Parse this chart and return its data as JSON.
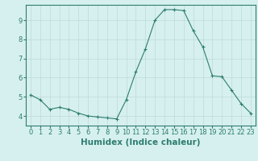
{
  "x": [
    0,
    1,
    2,
    3,
    4,
    5,
    6,
    7,
    8,
    9,
    10,
    11,
    12,
    13,
    14,
    15,
    16,
    17,
    18,
    19,
    20,
    21,
    22,
    23
  ],
  "y": [
    5.1,
    4.85,
    4.35,
    4.45,
    4.35,
    4.15,
    4.0,
    3.95,
    3.9,
    3.85,
    4.85,
    6.3,
    7.5,
    9.0,
    9.55,
    9.55,
    9.5,
    8.45,
    7.6,
    6.1,
    6.05,
    5.35,
    4.65,
    4.15
  ],
  "line_color": "#2e7d6e",
  "marker": "+",
  "marker_size": 3,
  "xlabel": "Humidex (Indice chaleur)",
  "ylabel": "",
  "title": "",
  "xlim": [
    -0.5,
    23.5
  ],
  "ylim": [
    3.5,
    9.8
  ],
  "yticks": [
    4,
    5,
    6,
    7,
    8,
    9
  ],
  "xticks": [
    0,
    1,
    2,
    3,
    4,
    5,
    6,
    7,
    8,
    9,
    10,
    11,
    12,
    13,
    14,
    15,
    16,
    17,
    18,
    19,
    20,
    21,
    22,
    23
  ],
  "bg_color": "#d6f0f0",
  "grid_color": "#c0dada",
  "tick_label_fontsize": 6,
  "xlabel_fontsize": 7.5
}
